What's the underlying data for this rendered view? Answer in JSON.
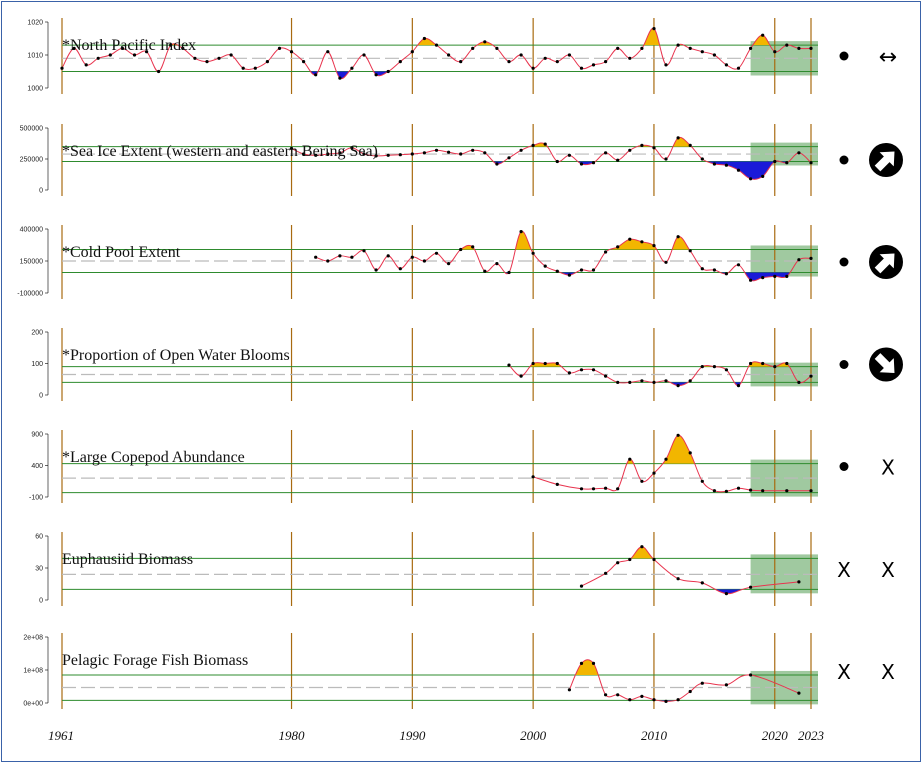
{
  "chart_data": [
    {
      "type": "line",
      "title": "*North Pacific Index",
      "yticks": [
        "1020",
        "1010",
        "1000"
      ],
      "ylim": [
        1000,
        1020
      ],
      "bands": {
        "upper": 1013,
        "mean": 1009,
        "lower": 1005
      },
      "x": [
        1961,
        1962,
        1963,
        1964,
        1965,
        1966,
        1967,
        1968,
        1969,
        1970,
        1971,
        1972,
        1973,
        1974,
        1975,
        1976,
        1977,
        1978,
        1979,
        1980,
        1981,
        1982,
        1983,
        1984,
        1985,
        1986,
        1987,
        1988,
        1989,
        1990,
        1991,
        1992,
        1993,
        1994,
        1995,
        1996,
        1997,
        1998,
        1999,
        2000,
        2001,
        2002,
        2003,
        2004,
        2005,
        2006,
        2007,
        2008,
        2009,
        2010,
        2011,
        2012,
        2013,
        2014,
        2015,
        2016,
        2017,
        2018,
        2019,
        2020,
        2021,
        2022,
        2023
      ],
      "values": [
        1006,
        1012,
        1007,
        1009,
        1010,
        1012,
        1010,
        1011,
        1005,
        1013,
        1012,
        1009,
        1008,
        1009,
        1010,
        1006,
        1006,
        1008,
        1012,
        1011,
        1008,
        1004,
        1011,
        1003,
        1006,
        1010,
        1004,
        1005,
        1008,
        1011,
        1015,
        1013,
        1010,
        1008,
        1012,
        1014,
        1012,
        1008,
        1010,
        1006,
        1009,
        1008,
        1010,
        1006,
        1007,
        1008,
        1012,
        1009,
        1012,
        1018,
        1007,
        1013,
        1012,
        1011,
        1010,
        1007,
        1006,
        1012,
        1016,
        1011,
        1013,
        1012,
        1012
      ],
      "status": "•",
      "trend": "↔"
    },
    {
      "type": "line",
      "title": "*Sea Ice Extent (western and eastern Bering Sea)",
      "yticks": [
        "500000",
        "250000",
        "0"
      ],
      "ylim": [
        0,
        500000
      ],
      "bands": {
        "upper": 350000,
        "mean": 290000,
        "lower": 230000
      },
      "x": [
        1980,
        1981,
        1982,
        1983,
        1984,
        1985,
        1986,
        1987,
        1988,
        1989,
        1990,
        1991,
        1992,
        1993,
        1994,
        1995,
        1996,
        1997,
        1998,
        1999,
        2000,
        2001,
        2002,
        2003,
        2004,
        2005,
        2006,
        2007,
        2008,
        2009,
        2010,
        2011,
        2012,
        2013,
        2014,
        2015,
        2016,
        2017,
        2018,
        2019,
        2020,
        2021,
        2022,
        2023
      ],
      "values": [
        335000,
        290000,
        280000,
        290000,
        300000,
        340000,
        290000,
        275000,
        280000,
        285000,
        290000,
        300000,
        320000,
        305000,
        290000,
        320000,
        300000,
        210000,
        260000,
        320000,
        360000,
        370000,
        230000,
        280000,
        210000,
        220000,
        300000,
        240000,
        320000,
        360000,
        340000,
        250000,
        420000,
        360000,
        250000,
        210000,
        200000,
        160000,
        90000,
        110000,
        230000,
        220000,
        300000,
        220000
      ],
      "status": "•",
      "trend": "arrow-up-right-icon"
    },
    {
      "type": "line",
      "title": "*Cold Pool Extent",
      "yticks": [
        "400000",
        "150000",
        "-100000"
      ],
      "ylim": [
        -100000,
        400000
      ],
      "bands": {
        "upper": 240000,
        "mean": 150000,
        "lower": 60000
      },
      "x": [
        1982,
        1983,
        1984,
        1985,
        1986,
        1987,
        1988,
        1989,
        1990,
        1991,
        1992,
        1993,
        1994,
        1995,
        1996,
        1997,
        1998,
        1999,
        2000,
        2001,
        2002,
        2003,
        2004,
        2005,
        2006,
        2007,
        2008,
        2009,
        2010,
        2011,
        2012,
        2013,
        2014,
        2015,
        2016,
        2017,
        2018,
        2019,
        2020,
        2021,
        2022,
        2023
      ],
      "values": [
        180000,
        150000,
        190000,
        180000,
        230000,
        80000,
        190000,
        90000,
        180000,
        150000,
        210000,
        130000,
        240000,
        260000,
        70000,
        130000,
        60000,
        380000,
        210000,
        110000,
        70000,
        40000,
        80000,
        80000,
        220000,
        260000,
        320000,
        300000,
        270000,
        140000,
        340000,
        230000,
        90000,
        80000,
        50000,
        120000,
        0,
        20000,
        30000,
        30000,
        160000,
        170000
      ],
      "status": "•",
      "trend": "arrow-up-right-icon"
    },
    {
      "type": "line",
      "title": "*Proportion of Open Water Blooms",
      "yticks": [
        "200",
        "100",
        "0"
      ],
      "ylim": [
        0,
        200
      ],
      "bands": {
        "upper": 90,
        "mean": 65,
        "lower": 40
      },
      "x": [
        1998,
        1999,
        2000,
        2001,
        2002,
        2003,
        2004,
        2005,
        2006,
        2007,
        2008,
        2009,
        2010,
        2011,
        2012,
        2013,
        2014,
        2015,
        2016,
        2017,
        2018,
        2019,
        2020,
        2021,
        2022,
        2023
      ],
      "values": [
        95,
        60,
        100,
        100,
        100,
        70,
        80,
        80,
        60,
        40,
        40,
        45,
        40,
        45,
        30,
        45,
        90,
        90,
        80,
        30,
        100,
        100,
        90,
        100,
        40,
        60
      ],
      "status": "•",
      "trend": "arrow-down-right-icon"
    },
    {
      "type": "line",
      "title": "*Large Copepod Abundance",
      "yticks": [
        "900",
        "400",
        "-100"
      ],
      "ylim": [
        -100,
        900
      ],
      "bands": {
        "upper": 430,
        "mean": 200,
        "lower": -30
      },
      "x": [
        2000,
        2002,
        2004,
        2005,
        2006,
        2007,
        2008,
        2009,
        2010,
        2011,
        2012,
        2013,
        2014,
        2015,
        2016,
        2017,
        2018,
        2019,
        2021,
        2023
      ],
      "values": [
        220,
        100,
        30,
        30,
        40,
        30,
        500,
        150,
        280,
        500,
        880,
        600,
        150,
        0,
        -10,
        40,
        10,
        0,
        0,
        0
      ],
      "status": "•",
      "trend": "X"
    },
    {
      "type": "line",
      "title": "Euphausiid Biomass",
      "yticks": [
        "60",
        "30",
        "0"
      ],
      "ylim": [
        0,
        60
      ],
      "bands": {
        "upper": 39,
        "mean": 24,
        "lower": 10
      },
      "x": [
        2004,
        2006,
        2007,
        2008,
        2009,
        2010,
        2012,
        2014,
        2016,
        2018,
        2022
      ],
      "values": [
        13,
        25,
        35,
        38,
        50,
        38,
        20,
        16,
        6,
        12,
        17
      ],
      "status": "X",
      "trend": "X"
    },
    {
      "type": "line",
      "title": "Pelagic Forage Fish Biomass",
      "yticks": [
        "2e+08",
        "1e+08",
        "0e+00"
      ],
      "ylim": [
        0,
        200000000
      ],
      "bands": {
        "upper": 85000000,
        "mean": 47000000,
        "lower": 8000000
      },
      "x": [
        2003,
        2004,
        2005,
        2006,
        2007,
        2008,
        2009,
        2010,
        2011,
        2012,
        2013,
        2014,
        2016,
        2018,
        2022
      ],
      "values": [
        40000000,
        120000000,
        120000000,
        25000000,
        25000000,
        10000000,
        20000000,
        10000000,
        5000000,
        10000000,
        35000000,
        60000000,
        55000000,
        85000000,
        30000000
      ],
      "status": "X",
      "trend": "X"
    }
  ],
  "x_axis": {
    "range": [
      1961,
      2023
    ],
    "labels": [
      "1961",
      "1980",
      "1990",
      "2000",
      "2010",
      "2020",
      "2023"
    ],
    "label_years": [
      1961,
      1980,
      1990,
      2000,
      2010,
      2020,
      2023
    ],
    "vlines": [
      1961,
      1980,
      1990,
      2000,
      2010,
      2020,
      2023
    ],
    "shade_from": 2018
  },
  "colors": {
    "line": "#e8344e",
    "above": "#f2b600",
    "below": "#1a1ad8",
    "band": "#2e8b2e",
    "shade": "#8fbf8f",
    "vline": "#a86a10",
    "frame": "#3a62a8"
  }
}
